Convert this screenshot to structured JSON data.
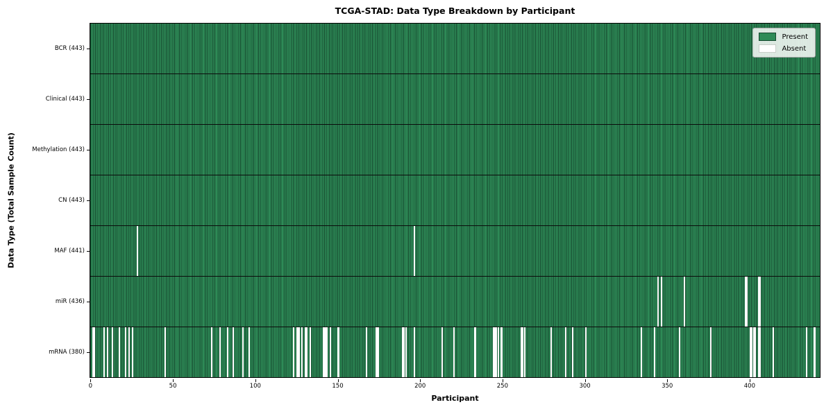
{
  "title": "TCGA-STAD: Data Type Breakdown by Participant",
  "xlabel": "Participant",
  "ylabel": "Data Type (Total Sample Count)",
  "legend": {
    "present_label": "Present",
    "absent_label": "Absent"
  },
  "colors": {
    "present": "#2e8b57",
    "present_edge": "#16492f",
    "absent": "#ffffff",
    "row_divider": "#0b0b0b",
    "legend_border": "#a9a9a9"
  },
  "chart_data": {
    "type": "heatmap",
    "title": "TCGA-STAD: Data Type Breakdown by Participant",
    "xlabel": "Participant",
    "ylabel": "Data Type (Total Sample Count)",
    "legend": [
      "Present",
      "Absent"
    ],
    "legend_position": "upper right",
    "grid": false,
    "x_ticks": [
      0,
      50,
      100,
      150,
      200,
      250,
      300,
      350,
      400
    ],
    "x_range": [
      0,
      443
    ],
    "n_participants": 443,
    "rows": [
      {
        "data_type": "BCR",
        "label": "BCR (443)",
        "present_count": 443,
        "absent_count": 0,
        "absent_participants": []
      },
      {
        "data_type": "Clinical",
        "label": "Clinical (443)",
        "present_count": 443,
        "absent_count": 0,
        "absent_participants": []
      },
      {
        "data_type": "Methylation",
        "label": "Methylation (443)",
        "present_count": 443,
        "absent_count": 0,
        "absent_participants": []
      },
      {
        "data_type": "CN",
        "label": "CN (443)",
        "present_count": 443,
        "absent_count": 0,
        "absent_participants": []
      },
      {
        "data_type": "MAF",
        "label": "MAF (441)",
        "present_count": 441,
        "absent_count": 2,
        "absent_participants": [
          28,
          196
        ]
      },
      {
        "data_type": "miR",
        "label": "miR (436)",
        "present_count": 436,
        "absent_count": 7,
        "absent_participants": [
          344,
          346,
          360,
          397,
          398,
          405,
          406
        ]
      },
      {
        "data_type": "mRNA",
        "label": "mRNA (380)",
        "present_count": 380,
        "absent_count": 63,
        "absent_participants": [
          1,
          2,
          8,
          10,
          13,
          17,
          21,
          23,
          25,
          45,
          73,
          78,
          83,
          86,
          92,
          96,
          123,
          125,
          126,
          128,
          130,
          131,
          133,
          141,
          142,
          143,
          145,
          150,
          167,
          173,
          174,
          189,
          190,
          191,
          196,
          213,
          220,
          233,
          244,
          245,
          246,
          247,
          249,
          261,
          262,
          263,
          279,
          288,
          292,
          300,
          334,
          342,
          357,
          376,
          400,
          401,
          402,
          403,
          405,
          406,
          414,
          434,
          439
        ]
      }
    ]
  }
}
